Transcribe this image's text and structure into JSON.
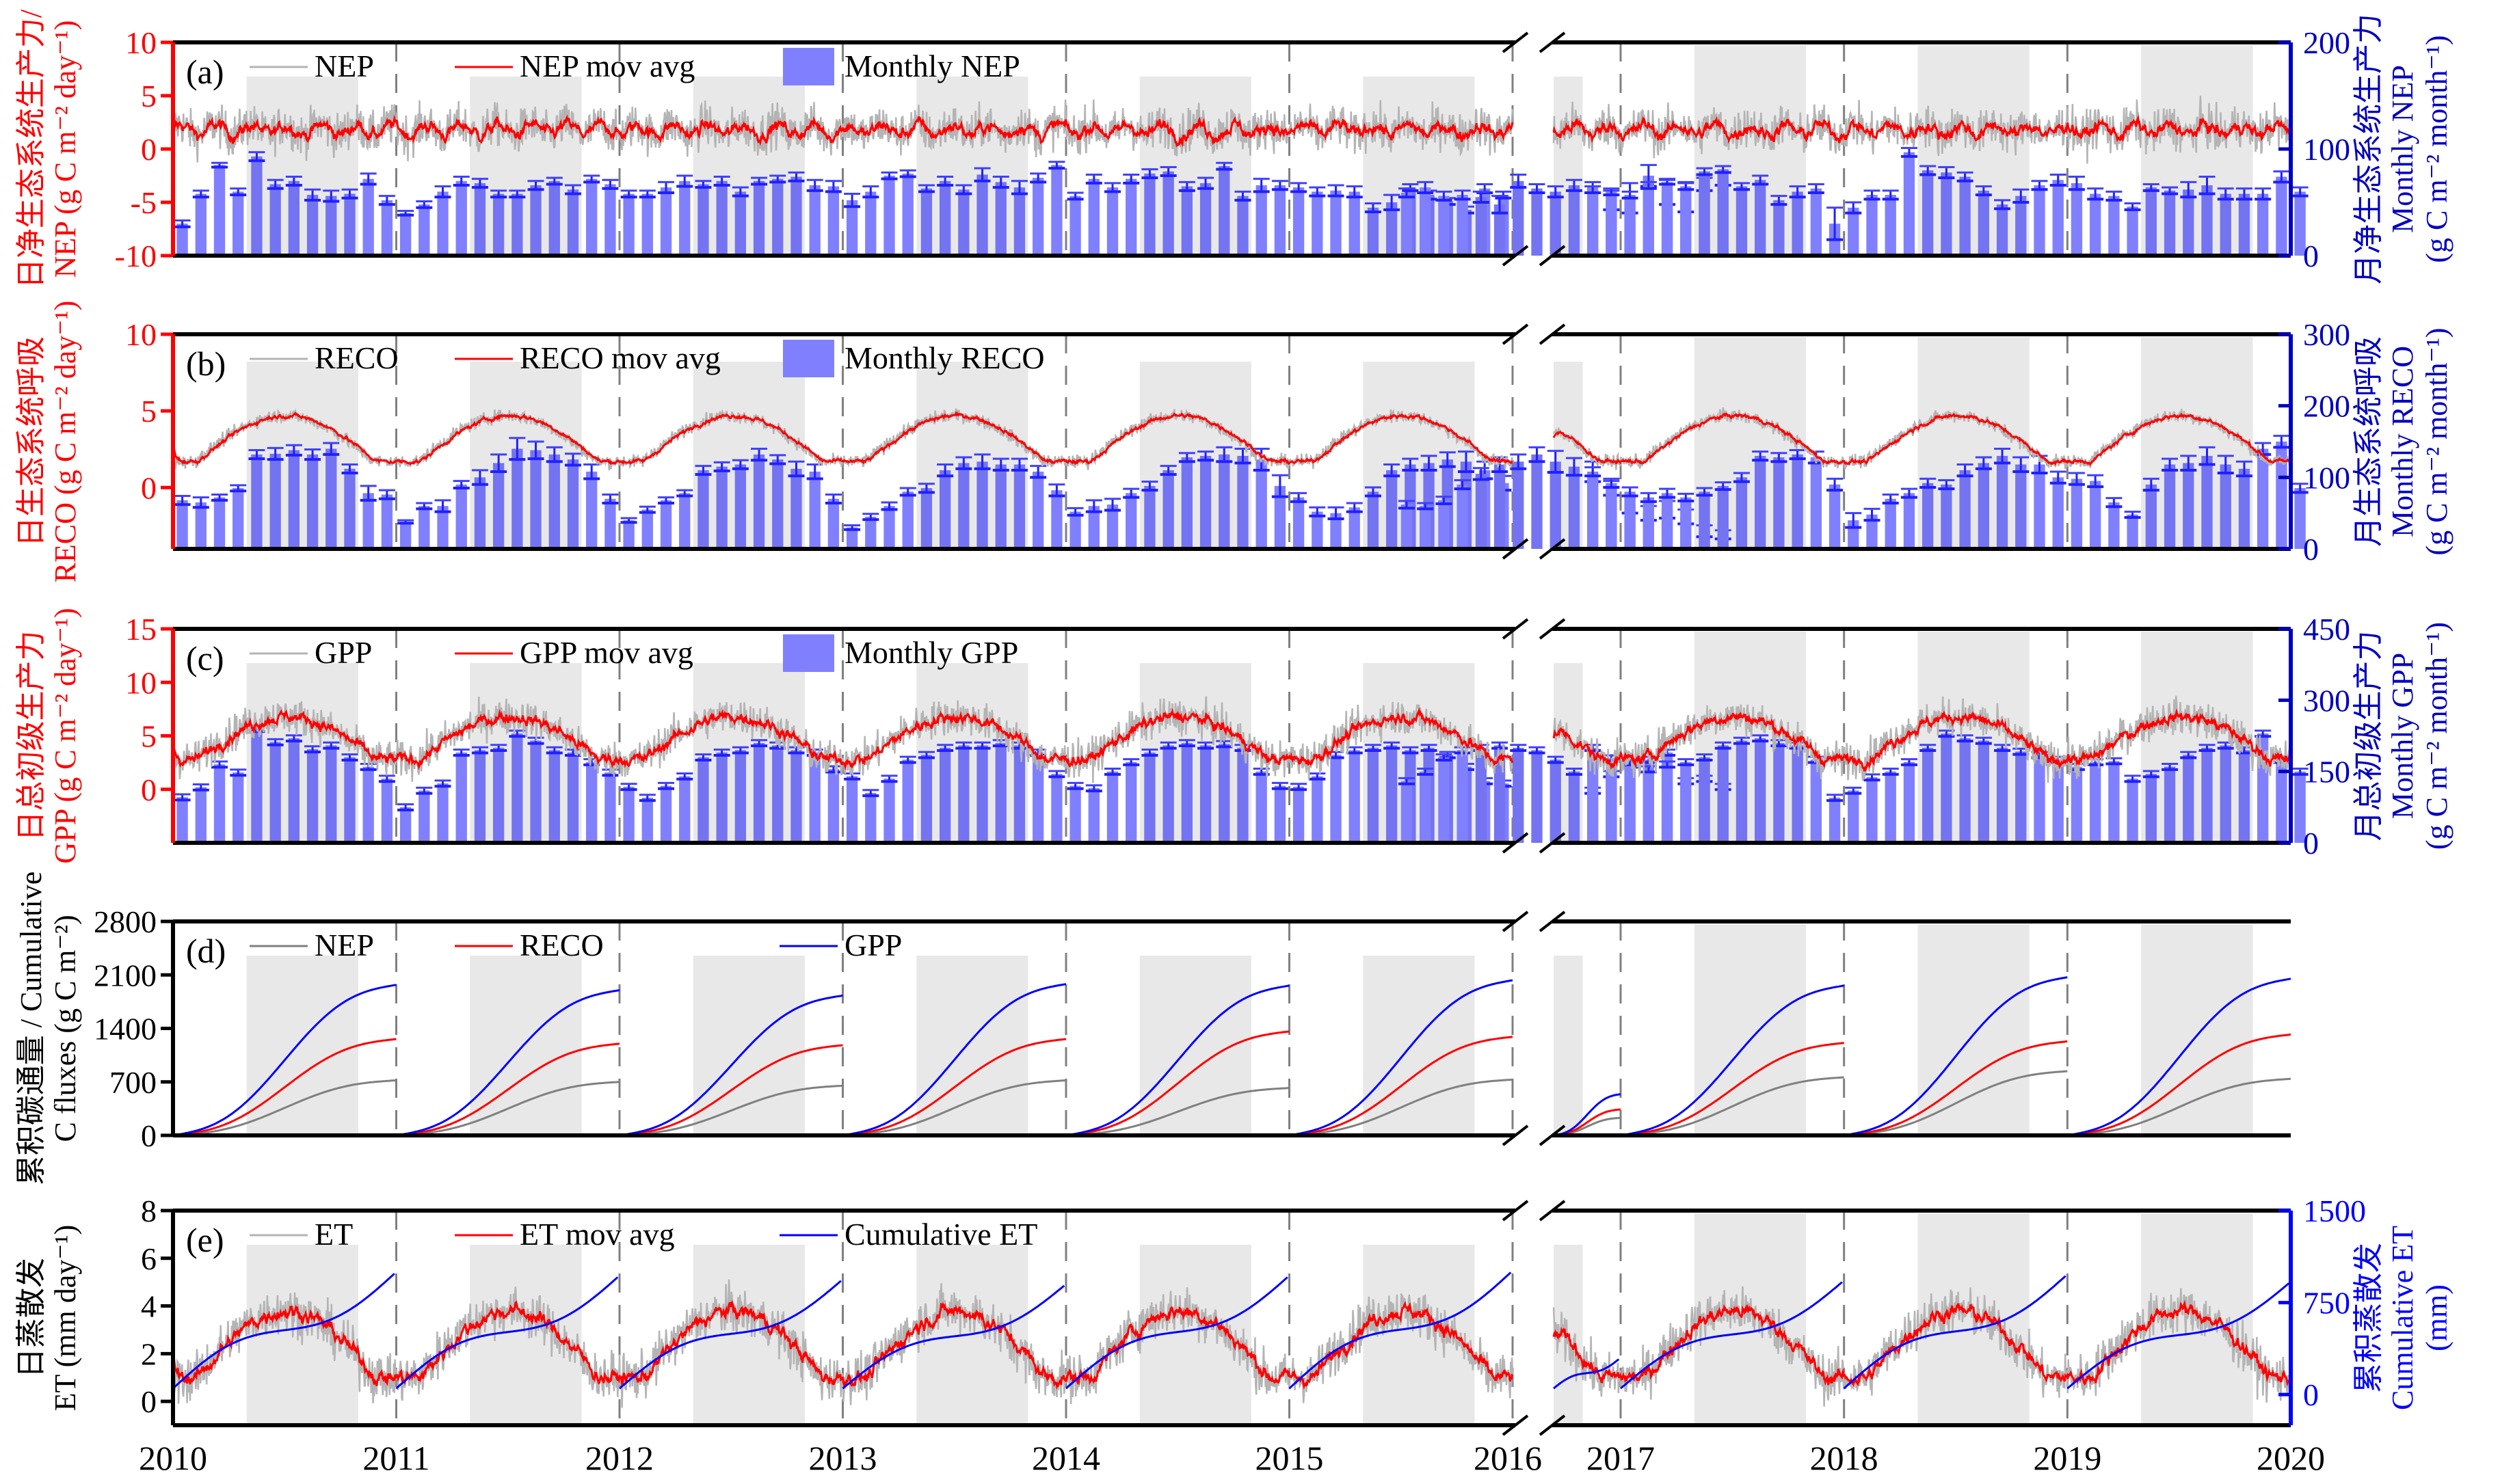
{
  "chart_data": {
    "type": "multi-panel time series (line + bar)",
    "x_axis": {
      "tick_labels": [
        "2010",
        "2011",
        "2012",
        "2013",
        "2014",
        "2015",
        "2016",
        "2017",
        "2018",
        "2019",
        "2020"
      ],
      "segments": [
        [
          2010,
          2016
        ],
        [
          2016.7,
          2020
        ]
      ],
      "axis_break": "between 2016 and 2017"
    },
    "season_shading": "growing season (approx. May–Oct) shaded light grey each year",
    "colors": {
      "daily": "#b4b4b4",
      "mov_avg": "#ff0000",
      "monthly_bar": "#8080ff",
      "monthly_bar_shaded": "#7474f2",
      "cumulative_nep": "#808080",
      "cumulative_reco": "#ff0000",
      "cumulative_gpp": "#0000ff",
      "left_axis_red": "#ff0000",
      "right_axis_blue": "#0000c0",
      "year_divider": "#808080"
    },
    "panels": [
      {
        "id": "a",
        "tag": "(a)",
        "left_axis": {
          "label_cn": "日净生态系统生产力/",
          "label_en": "NEP (g C m⁻² day⁻¹)",
          "ticks": [
            "10",
            "5",
            "0",
            "-5",
            "-10"
          ],
          "range": [
            -10,
            10
          ]
        },
        "right_axis": {
          "label_cn": "月净生态系统生产力",
          "label_en": "Monthly NEP",
          "label_units": "(g C m⁻² month⁻¹)",
          "ticks": [
            "200",
            "100",
            "0"
          ],
          "range": [
            0,
            200
          ]
        },
        "legend": [
          "NEP",
          "NEP mov avg",
          "Monthly NEP"
        ],
        "daily_mean": 1.8,
        "daily_amplitude": 0.6,
        "daily_noise": 1.4,
        "monthly_seg1": [
          30,
          58,
          85,
          60,
          93,
          67,
          70,
          57,
          56,
          58,
          72,
          52,
          40,
          48,
          60,
          70,
          68,
          58,
          58,
          66,
          70,
          62,
          72,
          67,
          58,
          58,
          64,
          70,
          67,
          70,
          60,
          70,
          72,
          74,
          66,
          65,
          52,
          60,
          75,
          77,
          63,
          70,
          62,
          76,
          69,
          64,
          73,
          85,
          56,
          72,
          64,
          72,
          77,
          79,
          65,
          68,
          84,
          56,
          66,
          66,
          64,
          60,
          61,
          60,
          45,
          50,
          64,
          57,
          51,
          43,
          63,
          57,
          59,
          64,
          56,
          57,
          55,
          48,
          70,
          63,
          60,
          66,
          64,
          52,
          54,
          75,
          60,
          55,
          67,
          72
        ],
        "monthly_seg1_err": [
          3,
          3,
          2,
          3,
          4,
          4,
          4,
          5,
          5,
          4,
          5,
          4,
          2,
          3,
          5,
          4,
          4,
          3,
          3,
          4,
          3,
          4,
          3,
          4,
          3,
          3,
          5,
          5,
          3,
          4,
          4,
          3,
          3,
          4,
          5,
          5,
          6,
          5,
          3,
          3,
          3,
          4,
          4,
          6,
          5,
          6,
          4,
          3,
          3,
          4,
          4,
          4,
          4,
          4,
          4,
          5,
          3,
          4,
          6,
          4,
          4,
          4,
          5,
          5,
          4,
          7,
          3,
          4,
          3,
          3,
          4,
          3,
          4,
          5,
          4,
          4,
          5,
          8,
          6,
          4,
          5,
          5,
          5,
          9,
          14,
          10,
          12,
          14,
          6,
          6
        ],
        "monthly_seg2": [
          62,
          60,
          57,
          66,
          69,
          65,
          79,
          81,
          65,
          71,
          52,
          60,
          63,
          30,
          45,
          57,
          57,
          97,
          80,
          78,
          74,
          61,
          48,
          56,
          66,
          71,
          68,
          58,
          56,
          46,
          64,
          61,
          62,
          66,
          58,
          58,
          58,
          74,
          60
        ],
        "monthly_seg2_err": [
          3,
          3,
          3,
          3,
          2,
          3,
          3,
          3,
          3,
          4,
          4,
          5,
          4,
          15,
          5,
          4,
          4,
          4,
          4,
          5,
          4,
          4,
          4,
          6,
          4,
          5,
          6,
          5,
          4,
          3,
          3,
          3,
          7,
          8,
          5,
          5,
          5,
          5,
          4
        ]
      },
      {
        "id": "b",
        "tag": "(b)",
        "left_axis": {
          "label_cn": "日生态系统呼吸",
          "label_en": "RECO (g C m⁻² day⁻¹)",
          "ticks": [
            "10",
            "5",
            "0"
          ],
          "range": [
            -4,
            10
          ]
        },
        "right_axis": {
          "label_cn": "月生态系统呼吸",
          "label_en": "Monthly RECO",
          "label_units": "(g C m⁻² month⁻¹)",
          "ticks": [
            "300",
            "200",
            "100",
            "0"
          ],
          "range": [
            0,
            300
          ]
        },
        "legend": [
          "RECO",
          "RECO mov avg",
          "Monthly RECO"
        ],
        "daily_mean": 3.2,
        "daily_amplitude": 1.5,
        "daily_noise": 0.3,
        "monthly_seg1": [
          68,
          65,
          72,
          85,
          132,
          133,
          138,
          132,
          140,
          112,
          78,
          76,
          38,
          60,
          60,
          90,
          100,
          120,
          140,
          138,
          132,
          125,
          108,
          70,
          40,
          55,
          68,
          78,
          110,
          115,
          118,
          132,
          125,
          112,
          108,
          70,
          30,
          45,
          60,
          80,
          85,
          110,
          120,
          122,
          118,
          118,
          108,
          82,
          52,
          60,
          62,
          78,
          88,
          110,
          128,
          130,
          132,
          130,
          125,
          88,
          72,
          52,
          50,
          58,
          80,
          110,
          118,
          120,
          125,
          122,
          110,
          92,
          62,
          60,
          68,
          90,
          105,
          118,
          122,
          132,
          122,
          115,
          108,
          85,
          62,
          50,
          55,
          45,
          25,
          20
        ],
        "monthly_seg1_err": [
          6,
          7,
          4,
          4,
          6,
          8,
          7,
          7,
          8,
          6,
          10,
          6,
          2,
          4,
          8,
          5,
          10,
          12,
          15,
          12,
          10,
          8,
          10,
          6,
          3,
          4,
          4,
          4,
          6,
          6,
          6,
          8,
          6,
          10,
          10,
          6,
          3,
          4,
          5,
          5,
          6,
          8,
          8,
          10,
          8,
          8,
          8,
          8,
          5,
          8,
          8,
          6,
          6,
          6,
          6,
          6,
          10,
          10,
          15,
          15,
          6,
          6,
          8,
          6,
          6,
          8,
          8,
          10,
          10,
          14,
          12,
          10,
          5,
          4,
          5,
          6,
          8,
          10,
          10,
          10,
          15,
          12,
          14,
          10,
          12,
          10,
          12,
          10,
          8,
          6
        ],
        "monthly_seg2": [
          108,
          92,
          80,
          72,
          78,
          72,
          80,
          88,
          100,
          130,
          128,
          132,
          128,
          90,
          40,
          48,
          70,
          78,
          92,
          90,
          110,
          120,
          130,
          118,
          118,
          100,
          98,
          95,
          65,
          48,
          90,
          118,
          120,
          130,
          118,
          112,
          140,
          150,
          85
        ],
        "monthly_seg2_err": [
          6,
          6,
          6,
          6,
          6,
          5,
          5,
          5,
          6,
          6,
          6,
          6,
          8,
          8,
          10,
          8,
          6,
          6,
          6,
          6,
          8,
          8,
          10,
          10,
          12,
          8,
          8,
          8,
          6,
          4,
          8,
          8,
          10,
          12,
          12,
          10,
          8,
          8,
          6
        ]
      },
      {
        "id": "c",
        "tag": "(c)",
        "left_axis": {
          "label_cn": "日总初级生产力",
          "label_en": "GPP (g C m⁻² day⁻¹)",
          "ticks": [
            "15",
            "10",
            "5",
            "0"
          ],
          "range": [
            -5,
            15
          ]
        },
        "right_axis": {
          "label_cn": "月总初级生产力",
          "label_en": "Monthly GPP",
          "label_units": "(g C m⁻² month⁻¹)",
          "ticks": [
            "450",
            "300",
            "150",
            "0"
          ],
          "range": [
            0,
            450
          ]
        },
        "legend": [
          "GPP",
          "GPP mov avg",
          "Monthly GPP"
        ],
        "daily_mean": 4.8,
        "daily_amplitude": 2.0,
        "daily_noise": 1.2,
        "monthly_seg1": [
          96,
          117,
          165,
          148,
          240,
          212,
          220,
          197,
          205,
          180,
          160,
          135,
          75,
          110,
          125,
          190,
          195,
          200,
          230,
          215,
          195,
          190,
          170,
          148,
          118,
          95,
          120,
          140,
          180,
          190,
          195,
          210,
          205,
          195,
          190,
          155,
          140,
          105,
          135,
          175,
          185,
          200,
          205,
          205,
          210,
          205,
          190,
          145,
          120,
          115,
          150,
          170,
          190,
          205,
          210,
          205,
          208,
          200,
          150,
          120,
          118,
          140,
          185,
          195,
          200,
          205,
          195,
          200,
          185,
          160,
          130,
          125,
          130,
          150,
          180,
          195,
          200,
          205,
          200,
          195,
          175,
          150,
          110,
          145,
          165,
          175,
          190,
          130,
          135,
          118
        ],
        "monthly_seg2": [
          200,
          178,
          170,
          155,
          165,
          170,
          180,
          205,
          215,
          220,
          210,
          205,
          175,
          95,
          110,
          138,
          150,
          170,
          200,
          230,
          220,
          215,
          200,
          192,
          185,
          175,
          160,
          170,
          172,
          135,
          145,
          160,
          185,
          200,
          205,
          195,
          230,
          175,
          150
        ],
        "monthly_err_note": "small error bars (~5–15)"
      },
      {
        "id": "d",
        "tag": "(d)",
        "left_axis": {
          "label_cn": "累积碳通量 / Cumulative",
          "label_en": "C fluxes (g C m⁻²)",
          "ticks": [
            "2800",
            "2100",
            "1400",
            "700",
            "0"
          ],
          "range": [
            0,
            2800
          ]
        },
        "legend": [
          "NEP",
          "RECO",
          "GPP"
        ],
        "annual_end_totals": {
          "years": [
            "2010",
            "2011",
            "2012",
            "2013",
            "2014",
            "2015",
            "2016 (partial)",
            "2017",
            "2018",
            "2019"
          ],
          "NEP": [
            720,
            700,
            650,
            720,
            620,
            730,
            230,
            760,
            840,
            740
          ],
          "RECO": [
            1260,
            1200,
            1180,
            1260,
            1360,
            1290,
            340,
            1210,
            1230,
            1320
          ],
          "GPP": [
            1970,
            1900,
            1830,
            1980,
            1960,
            2030,
            540,
            1960,
            2070,
            2050
          ]
        }
      },
      {
        "id": "e",
        "tag": "(e)",
        "left_axis": {
          "label_cn": "日蒸散发",
          "label_en": "ET (mm day⁻¹)",
          "ticks": [
            "8",
            "6",
            "4",
            "2",
            "0"
          ],
          "range": [
            -1,
            8
          ]
        },
        "right_axis": {
          "label_cn": "累积蒸散发",
          "label_en": "Cumulative ET",
          "label_units": "(mm)",
          "ticks": [
            "1500",
            "750",
            "0"
          ],
          "range": [
            -250,
            1500
          ]
        },
        "legend": [
          "ET",
          "ET mov avg",
          "Cumulative ET"
        ],
        "daily_mean": 2.4,
        "daily_amplitude": 1.4,
        "daily_noise": 0.7,
        "annual_cumulative_ET_end": [
          1000,
          970,
          940,
          900,
          970,
          1010,
          300,
          930,
          980,
          920
        ]
      }
    ]
  }
}
